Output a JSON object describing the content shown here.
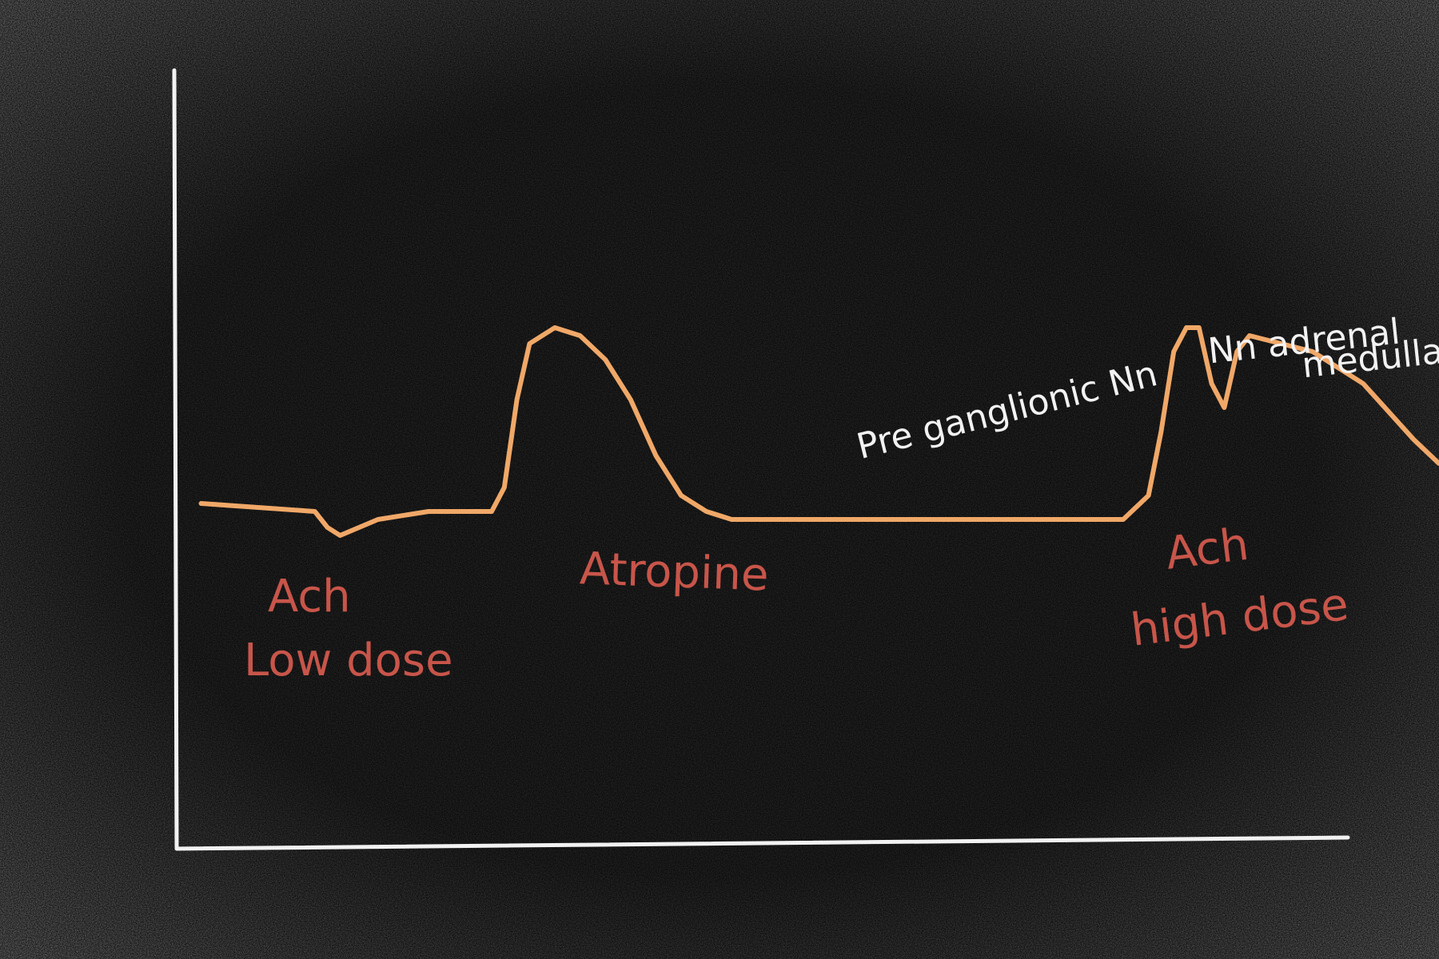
{
  "colors": {
    "board": "#0b0b0b",
    "chalk_texture": "#bdbdbd",
    "axis": "#f2f2f2",
    "trace": "#f0a868",
    "drug_label": "#c8554a",
    "annotation": "#f2f2f2"
  },
  "chart_data": {
    "type": "line",
    "title": "",
    "xlabel": "",
    "ylabel": "",
    "grid": false,
    "legend": "none",
    "xlim": [
      0,
      100
    ],
    "ylim": [
      0,
      100
    ],
    "series": [
      {
        "x": [
          2,
          11,
          12,
          13,
          16,
          20,
          25,
          26,
          27,
          28,
          30,
          32,
          34,
          36,
          38,
          40,
          42,
          44,
          47,
          50,
          75,
          77,
          78,
          79,
          80,
          81,
          82,
          83,
          84,
          85,
          90,
          94,
          98,
          100
        ],
        "y": [
          43,
          42,
          40,
          39,
          41,
          42,
          42,
          45,
          56,
          63,
          65,
          64,
          61,
          56,
          49,
          44,
          42,
          41,
          41,
          41,
          41,
          44,
          52,
          62,
          65,
          65,
          58,
          55,
          62,
          64,
          62,
          58,
          51,
          48
        ]
      }
    ],
    "annotations": [
      {
        "lines": [
          "Ach",
          "Low dose"
        ],
        "color": "drug_label"
      },
      {
        "lines": [
          "Atropine"
        ],
        "color": "drug_label"
      },
      {
        "lines": [
          "Ach",
          "high dose"
        ],
        "color": "drug_label"
      },
      {
        "lines": [
          "Pre ganglionic Nn"
        ],
        "color": "annotation"
      },
      {
        "lines": [
          "Nn adrenal",
          "medulla"
        ],
        "color": "annotation"
      }
    ]
  }
}
